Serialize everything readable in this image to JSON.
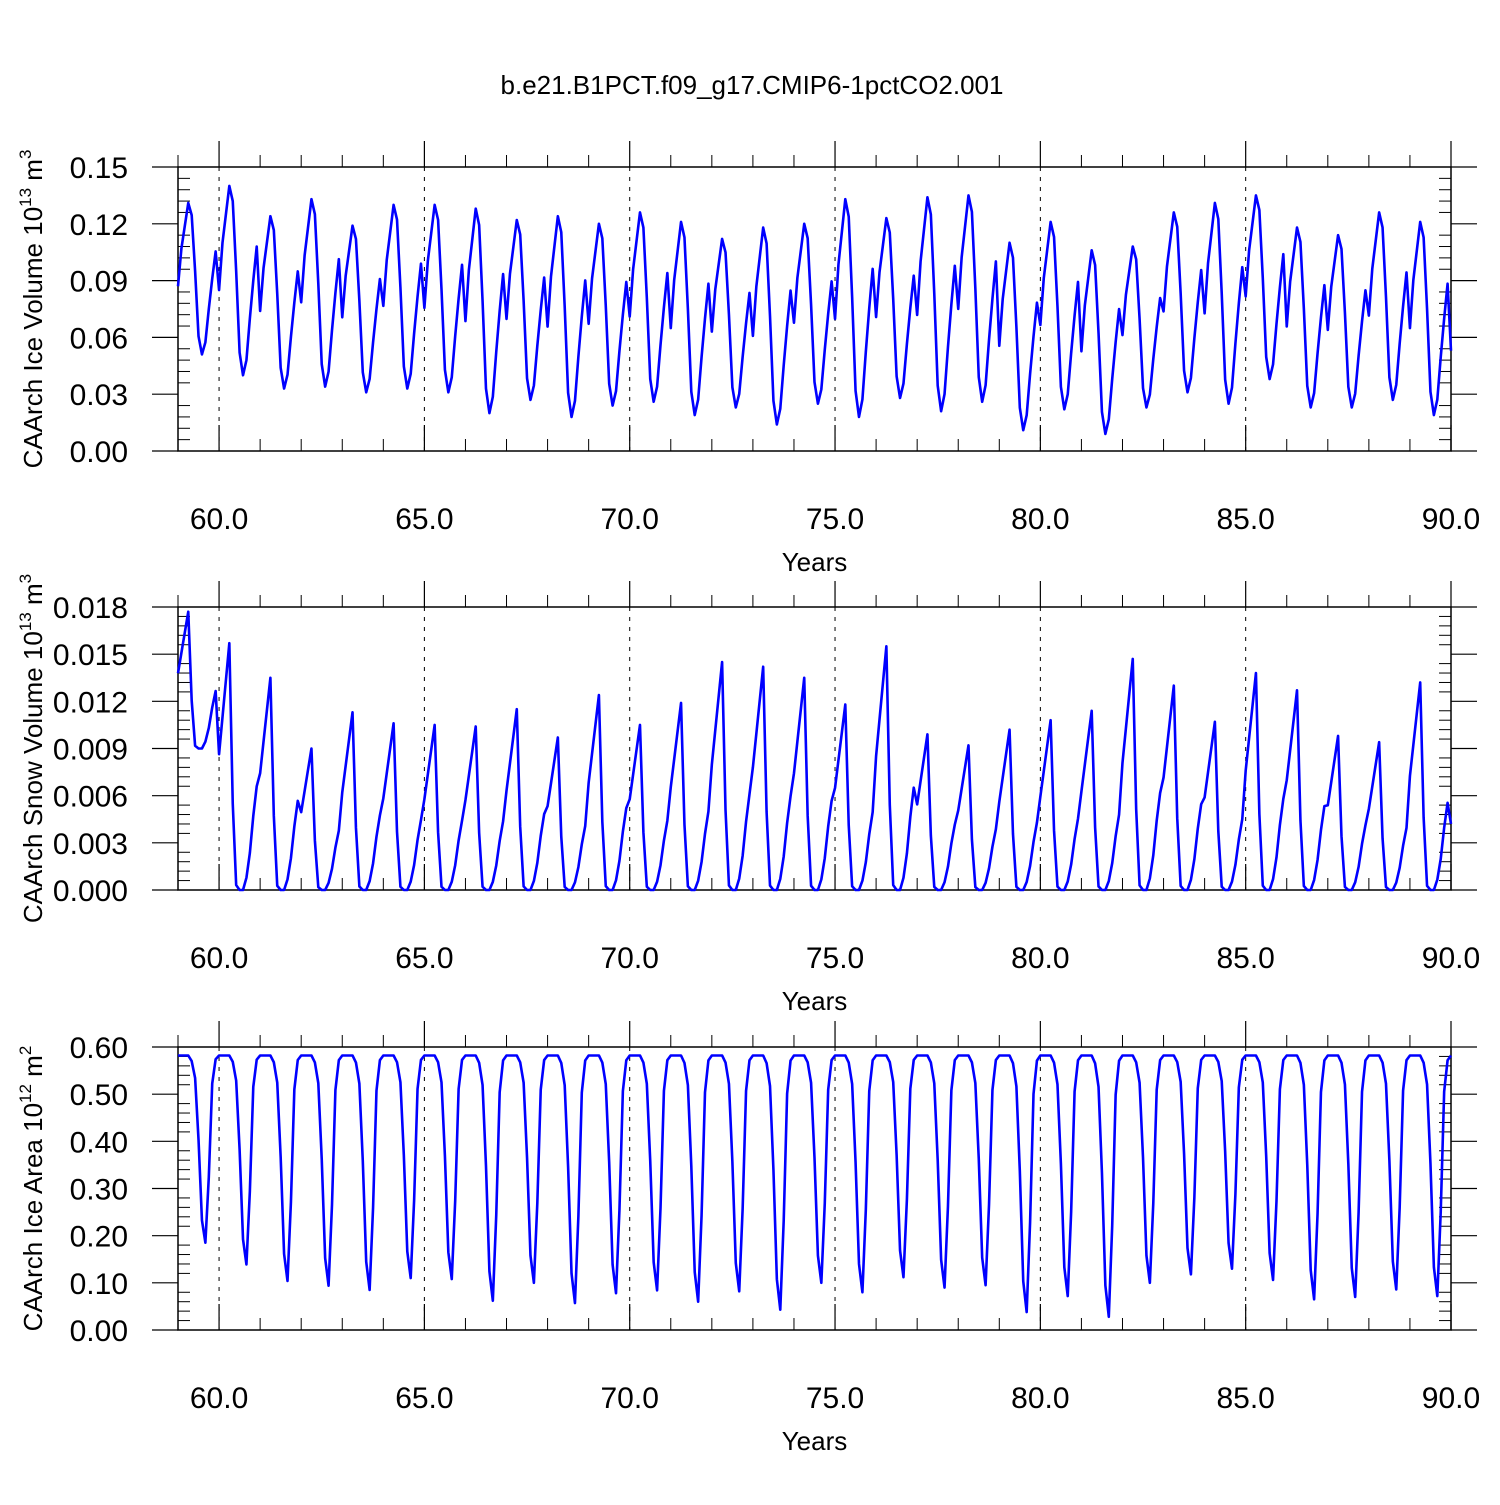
{
  "title": "b.e21.B1PCT.f09_g17.CMIP6-1pctCO2.001",
  "line_color": "#0000ff",
  "chart_data": [
    {
      "type": "line",
      "ylabel_main": "CAArch Ice Volume 10",
      "ylabel_exp": "13",
      "ylabel_unit": " m",
      "ylabel_unit_exp": "3",
      "xlabel": "Years",
      "xlim": [
        59.0,
        90.0
      ],
      "ylim": [
        0,
        0.15
      ],
      "yticks": [
        0.0,
        0.03,
        0.06,
        0.09,
        0.12,
        0.15
      ],
      "ytick_labels": [
        "0.00",
        "0.03",
        "0.06",
        "0.09",
        "0.12",
        "0.15"
      ],
      "xticks": [
        60,
        65,
        70,
        75,
        80,
        85,
        90
      ],
      "xtick_labels": [
        "60.0",
        "65.0",
        "70.0",
        "75.0",
        "80.0",
        "85.0",
        "90.0"
      ],
      "yearly_min": [
        0.051,
        0.04,
        0.033,
        0.034,
        0.031,
        0.033,
        0.031,
        0.02,
        0.027,
        0.018,
        0.024,
        0.026,
        0.019,
        0.023,
        0.014,
        0.025,
        0.018,
        0.028,
        0.021,
        0.026,
        0.011,
        0.022,
        0.009,
        0.023,
        0.031,
        0.025,
        0.038,
        0.023,
        0.023,
        0.027,
        0.019
      ],
      "yearly_max": [
        0.131,
        0.14,
        0.124,
        0.133,
        0.119,
        0.13,
        0.13,
        0.128,
        0.122,
        0.124,
        0.12,
        0.126,
        0.121,
        0.112,
        0.118,
        0.12,
        0.133,
        0.123,
        0.134,
        0.135,
        0.11,
        0.121,
        0.106,
        0.108,
        0.126,
        0.131,
        0.135,
        0.118,
        0.114,
        0.126,
        0.121
      ],
      "series": [
        {
          "name": "",
          "values": []
        }
      ]
    },
    {
      "type": "line",
      "ylabel_main": "CAArch Snow Volume 10",
      "ylabel_exp": "13",
      "ylabel_unit": " m",
      "ylabel_unit_exp": "3",
      "xlabel": "Years",
      "xlim": [
        59.0,
        90.0
      ],
      "ylim": [
        0,
        0.018
      ],
      "yticks": [
        0.0,
        0.003,
        0.006,
        0.009,
        0.012,
        0.015,
        0.018
      ],
      "ytick_labels": [
        "0.000",
        "0.003",
        "0.006",
        "0.009",
        "0.012",
        "0.015",
        "0.018"
      ],
      "xticks": [
        60,
        65,
        70,
        75,
        80,
        85,
        90
      ],
      "xtick_labels": [
        "60.0",
        "65.0",
        "70.0",
        "75.0",
        "80.0",
        "85.0",
        "90.0"
      ],
      "yearly_min": [
        0.009,
        0,
        0,
        0,
        0,
        0,
        0,
        0,
        0,
        0,
        0,
        0,
        0,
        0,
        0,
        0,
        0,
        0,
        0,
        0,
        0,
        0,
        0,
        0,
        0,
        0,
        0,
        0,
        0,
        0,
        0
      ],
      "yearly_max": [
        0.0177,
        0.0157,
        0.0135,
        0.009,
        0.0113,
        0.0106,
        0.0105,
        0.0104,
        0.0115,
        0.0097,
        0.0124,
        0.0105,
        0.0119,
        0.0145,
        0.0142,
        0.0135,
        0.0118,
        0.0155,
        0.0099,
        0.0092,
        0.0102,
        0.0108,
        0.0114,
        0.0147,
        0.013,
        0.0107,
        0.0138,
        0.0127,
        0.0098,
        0.0094,
        0.0132
      ],
      "series": [
        {
          "name": "",
          "values": []
        }
      ]
    },
    {
      "type": "line",
      "ylabel_main": "CAArch Ice Area 10",
      "ylabel_exp": "12",
      "ylabel_unit": " m",
      "ylabel_unit_exp": "2",
      "xlabel": "Years",
      "xlim": [
        59.0,
        90.0
      ],
      "ylim": [
        0,
        0.6
      ],
      "yticks": [
        0.0,
        0.1,
        0.2,
        0.3,
        0.4,
        0.5,
        0.6
      ],
      "ytick_labels": [
        "0.00",
        "0.10",
        "0.20",
        "0.30",
        "0.40",
        "0.50",
        "0.60"
      ],
      "xticks": [
        60,
        65,
        70,
        75,
        80,
        85,
        90
      ],
      "xtick_labels": [
        "60.0",
        "65.0",
        "70.0",
        "75.0",
        "80.0",
        "85.0",
        "90.0"
      ],
      "yearly_min": [
        0.185,
        0.139,
        0.104,
        0.094,
        0.085,
        0.11,
        0.108,
        0.062,
        0.1,
        0.057,
        0.078,
        0.084,
        0.06,
        0.082,
        0.043,
        0.1,
        0.08,
        0.112,
        0.09,
        0.095,
        0.038,
        0.072,
        0.028,
        0.1,
        0.118,
        0.13,
        0.106,
        0.065,
        0.07,
        0.086,
        0.072
      ],
      "yearly_max": [
        0.582,
        0.582,
        0.582,
        0.582,
        0.582,
        0.582,
        0.582,
        0.582,
        0.582,
        0.582,
        0.582,
        0.582,
        0.582,
        0.582,
        0.582,
        0.582,
        0.582,
        0.582,
        0.582,
        0.582,
        0.582,
        0.582,
        0.582,
        0.582,
        0.582,
        0.582,
        0.582,
        0.582,
        0.582,
        0.582,
        0.582
      ],
      "series": [
        {
          "name": "",
          "values": []
        }
      ]
    }
  ]
}
